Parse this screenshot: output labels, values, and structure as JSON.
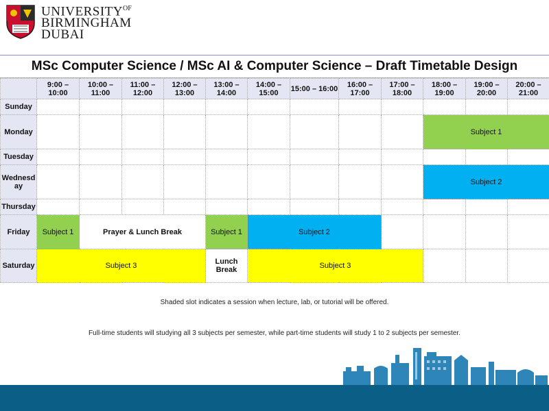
{
  "header": {
    "logo_line1": "UNIVERSITY",
    "logo_of": "OF",
    "logo_line2": "BIRMINGHAM",
    "logo_line3": "DUBAI",
    "crest_icon": "university-crest-icon"
  },
  "title": "MSc Computer Science / MSc AI & Computer Science – Draft Timetable Design",
  "time_slots": [
    "9:00 – 10:00",
    "10:00 – 11:00",
    "11:00 – 12:00",
    "12:00 – 13:00",
    "13:00 – 14:00",
    "14:00 – 15:00",
    "15:00 – 16:00",
    "16:00 – 17:00",
    "17:00 – 18:00",
    "18:00 – 19:00",
    "19:00 – 20:00",
    "20:00 – 21:00"
  ],
  "days": [
    "Sunday",
    "Monday",
    "Tuesday",
    "Wednesday",
    "Thursday",
    "Friday",
    "Saturday"
  ],
  "days_display": [
    "Sunday",
    "Monday",
    "Tuesday",
    "Wednesd ay",
    "Thursday",
    "Friday",
    "Saturday"
  ],
  "sessions": {
    "monday_evening": "Subject 1",
    "wednesday_evening": "Subject 2",
    "friday_morning": "Subject 1",
    "friday_break": "Prayer & Lunch Break",
    "friday_afternoon_1": "Subject 1",
    "friday_afternoon_2": "Subject 2",
    "saturday_morning": "Subject 3",
    "saturday_break": "Lunch Break",
    "saturday_afternoon": "Subject 3"
  },
  "colors": {
    "header_fill": "#e5e6f4",
    "subject1": "#92d050",
    "subject2": "#00b0f0",
    "subject3": "#ffff00",
    "footer": "#0b5e86"
  },
  "notes": {
    "shading": "Shaded slot indicates a session when lecture, lab, or tutorial will be offered.",
    "students": "Full-time students will studying all 3 subjects per semester, while part-time students will study 1 to 2 subjects per semester."
  },
  "footer_skyline_icon": "birmingham-skyline-icon"
}
